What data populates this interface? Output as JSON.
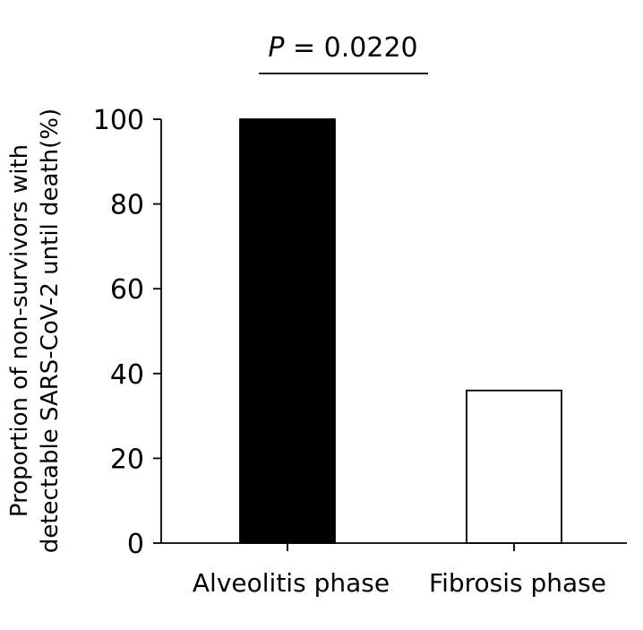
{
  "chart_data": {
    "type": "bar",
    "categories": [
      "Alveolitis phase",
      "Fibrosis phase"
    ],
    "values": [
      100,
      36
    ],
    "bar_fills": [
      "#000000",
      "#ffffff"
    ],
    "ylabel_lines": [
      "Proportion of non-survivors with",
      "detectable SARS-CoV-2 until death(%)"
    ],
    "xlabel": "",
    "ylim": [
      0,
      100
    ],
    "yticks": [
      0,
      20,
      40,
      60,
      80,
      100
    ],
    "ytick_labels": [
      "0",
      "20",
      "40",
      "60",
      "80",
      "100"
    ],
    "grid": false,
    "annotation": {
      "p_symbol": "P",
      "p_rest": " = 0.0220"
    }
  }
}
